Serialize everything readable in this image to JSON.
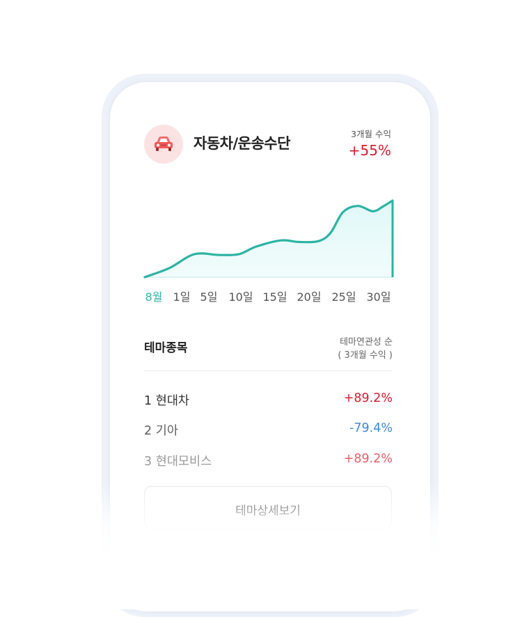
{
  "theme": {
    "icon": "car-icon",
    "name": "자동차/운송수단",
    "return_label": "3개월 수익",
    "return_value": "+55%"
  },
  "chart_data": {
    "type": "area",
    "x_tick_labels": [
      "8월",
      "1일",
      "5일",
      "10일",
      "15일",
      "20일",
      "25일",
      "30일"
    ],
    "active_tick": "8월",
    "x": [
      0,
      0.1,
      0.2,
      0.3,
      0.38,
      0.45,
      0.55,
      0.62,
      0.7,
      0.75,
      0.8,
      0.86,
      0.92,
      0.96,
      1.0
    ],
    "y": [
      0,
      0.12,
      0.3,
      0.29,
      0.3,
      0.4,
      0.48,
      0.46,
      0.47,
      0.58,
      0.85,
      0.93,
      0.86,
      0.92,
      1.0
    ],
    "colors": {
      "line": "#2bb3a3",
      "fill": "#e0f8f8"
    }
  },
  "stocks": {
    "title": "테마종목",
    "sort_label": "테마연관성 순",
    "sort_sub": "( 3개월 수익 )",
    "items": [
      {
        "rank": "1",
        "name": "현대차",
        "change": "+89.2%",
        "color": "#d81b2c"
      },
      {
        "rank": "2",
        "name": "기아",
        "change": "-79.4%",
        "color": "#2f7fd8"
      },
      {
        "rank": "3",
        "name": "현대모비스",
        "change": "+89.2%",
        "color": "#d81b2c"
      }
    ]
  },
  "detail_button": {
    "label": "테마상세보기"
  }
}
